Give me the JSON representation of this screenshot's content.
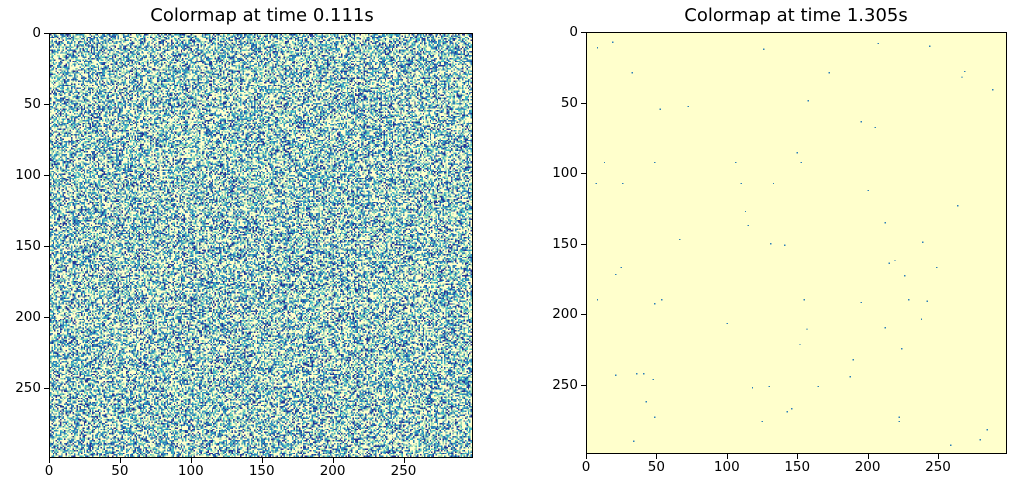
{
  "chart_data": [
    {
      "type": "heatmap",
      "title": "Colormap at time 0.111s",
      "grid_size": 300,
      "colormap": [
        "#ffffcc",
        "#a1dab4",
        "#41b6c4",
        "#2c7fb8",
        "#253494"
      ],
      "density": "dense-noise",
      "xlim": [
        0,
        299
      ],
      "ylim": [
        299,
        0
      ],
      "xticks": [
        "0",
        "50",
        "100",
        "150",
        "200",
        "250"
      ],
      "yticks": [
        "0",
        "50",
        "100",
        "150",
        "200",
        "250"
      ],
      "xlabel": "",
      "ylabel": ""
    },
    {
      "type": "heatmap",
      "title": "Colormap at time 1.305s",
      "grid_size": 300,
      "background_color": "#ffffcc",
      "point_color": "#2c7fb8",
      "points": [
        [
          7,
          10
        ],
        [
          18,
          6
        ],
        [
          32,
          28
        ],
        [
          12,
          92
        ],
        [
          6,
          107
        ],
        [
          25,
          107
        ],
        [
          48,
          92
        ],
        [
          52,
          54
        ],
        [
          72,
          52
        ],
        [
          106,
          92
        ],
        [
          110,
          107
        ],
        [
          126,
          11
        ],
        [
          133,
          107
        ],
        [
          158,
          48
        ],
        [
          173,
          28
        ],
        [
          150,
          85
        ],
        [
          153,
          92
        ],
        [
          208,
          7
        ],
        [
          245,
          9
        ],
        [
          268,
          31
        ],
        [
          270,
          27
        ],
        [
          290,
          40
        ],
        [
          300,
          63
        ],
        [
          196,
          63
        ],
        [
          206,
          67
        ],
        [
          201,
          112
        ],
        [
          213,
          135
        ],
        [
          265,
          123
        ],
        [
          113,
          127
        ],
        [
          115,
          137
        ],
        [
          66,
          147
        ],
        [
          131,
          150
        ],
        [
          141,
          151
        ],
        [
          220,
          162
        ],
        [
          216,
          164
        ],
        [
          240,
          149
        ],
        [
          250,
          167
        ],
        [
          227,
          173
        ],
        [
          20,
          172
        ],
        [
          24,
          167
        ],
        [
          7,
          190
        ],
        [
          48,
          193
        ],
        [
          53,
          190
        ],
        [
          155,
          190
        ],
        [
          196,
          192
        ],
        [
          243,
          191
        ],
        [
          230,
          190
        ],
        [
          157,
          211
        ],
        [
          213,
          210
        ],
        [
          239,
          204
        ],
        [
          100,
          207
        ],
        [
          152,
          222
        ],
        [
          225,
          225
        ],
        [
          190,
          233
        ],
        [
          188,
          245
        ],
        [
          130,
          252
        ],
        [
          165,
          252
        ],
        [
          40,
          243
        ],
        [
          20,
          244
        ],
        [
          47,
          247
        ],
        [
          35,
          243
        ],
        [
          42,
          263
        ],
        [
          48,
          274
        ],
        [
          118,
          253
        ],
        [
          146,
          268
        ],
        [
          143,
          270
        ],
        [
          125,
          277
        ],
        [
          223,
          274
        ],
        [
          223,
          277
        ],
        [
          286,
          283
        ],
        [
          281,
          290
        ],
        [
          260,
          294
        ],
        [
          33,
          291
        ]
      ],
      "xlim": [
        0,
        299
      ],
      "ylim": [
        299,
        0
      ],
      "xticks": [
        "0",
        "50",
        "100",
        "150",
        "200",
        "250"
      ],
      "yticks": [
        "0",
        "50",
        "100",
        "150",
        "200",
        "250"
      ],
      "xlabel": "",
      "ylabel": ""
    }
  ]
}
